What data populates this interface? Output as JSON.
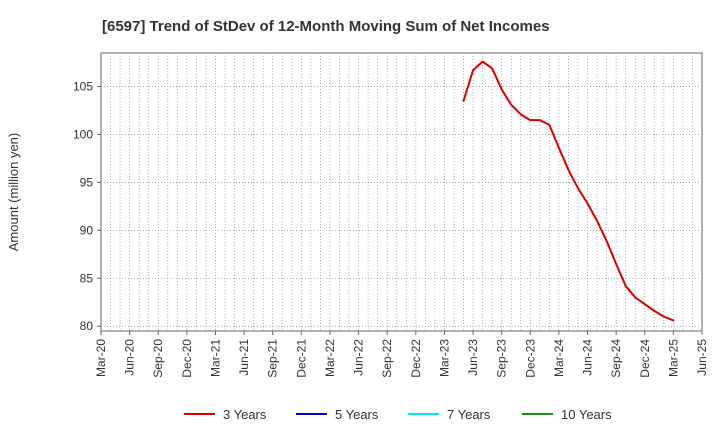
{
  "chart_data": {
    "type": "line",
    "title": "[6597]  Trend of StDev of 12-Month Moving Sum of Net Incomes",
    "xlabel": "",
    "ylabel": "Amount (million yen)",
    "x_tick_labels": [
      "Mar-20",
      "Jun-20",
      "Sep-20",
      "Dec-20",
      "Mar-21",
      "Jun-21",
      "Sep-21",
      "Dec-21",
      "Mar-22",
      "Jun-22",
      "Sep-22",
      "Dec-22",
      "Mar-23",
      "Jun-23",
      "Sep-23",
      "Dec-23",
      "Mar-24",
      "Jun-24",
      "Sep-24",
      "Dec-24",
      "Mar-25",
      "Jun-25"
    ],
    "y_ticks": [
      80,
      85,
      90,
      95,
      100,
      105
    ],
    "xlim": [
      "2020-03",
      "2025-06"
    ],
    "ylim": [
      79.5,
      108.5
    ],
    "grid": true,
    "legend_position": "bottom",
    "series": [
      {
        "name": "3 Years",
        "color": "#dd0000",
        "x": [
          "2023-05",
          "2023-06",
          "2023-07",
          "2023-08",
          "2023-09",
          "2023-10",
          "2023-11",
          "2023-12",
          "2024-01",
          "2024-02",
          "2024-03",
          "2024-04",
          "2024-05",
          "2024-06",
          "2024-07",
          "2024-08",
          "2024-09",
          "2024-10",
          "2024-11",
          "2024-12",
          "2025-01",
          "2025-02",
          "2025-03"
        ],
        "values": [
          103.5,
          106.7,
          107.6,
          106.9,
          104.7,
          103.1,
          102.1,
          101.5,
          101.5,
          101.0,
          98.6,
          96.3,
          94.4,
          92.8,
          91.0,
          88.9,
          86.5,
          84.2,
          83.0,
          82.3,
          81.6,
          81.0,
          80.6
        ]
      },
      {
        "name": "5 Years",
        "color": "#0000cc",
        "x": [],
        "values": []
      },
      {
        "name": "7 Years",
        "color": "#00e5ee",
        "x": [],
        "values": []
      },
      {
        "name": "10 Years",
        "color": "#228b22",
        "x": [],
        "values": []
      }
    ]
  }
}
